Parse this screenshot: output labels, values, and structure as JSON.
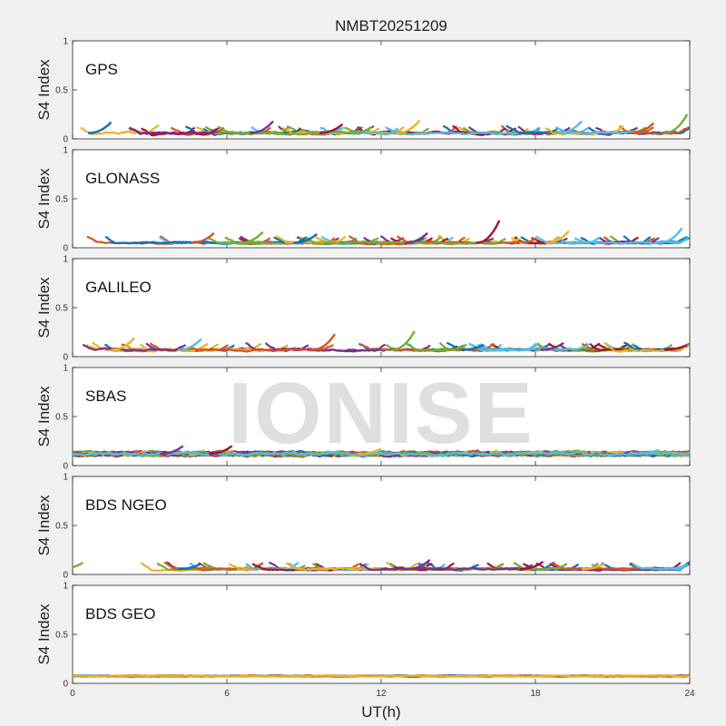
{
  "chart_data": {
    "type": "line",
    "title": "NMBT20251209",
    "xlabel": "UT(h)",
    "ylabel": "S4 Index",
    "xlim": [
      0,
      24
    ],
    "xticks": [
      0,
      6,
      12,
      18,
      24
    ],
    "ylim": [
      0,
      1
    ],
    "yticks": [
      0,
      0.5,
      1
    ],
    "ytick_labels": [
      "0",
      "0.5",
      "1"
    ],
    "grid": false,
    "watermark": "IONISE",
    "series_colors": [
      "#0072BD",
      "#D95319",
      "#EDB120",
      "#7E2F8E",
      "#77AC30",
      "#4DBEEE",
      "#A2142F"
    ],
    "panels": [
      {
        "label": "GPS",
        "baseline": 0.06,
        "noise": 0.035,
        "spikes": [
          [
            1.5,
            0.17
          ],
          [
            7.8,
            0.18
          ],
          [
            10.5,
            0.15
          ],
          [
            13.5,
            0.19
          ],
          [
            19.8,
            0.18
          ],
          [
            22.6,
            0.16
          ],
          [
            23.9,
            0.25
          ]
        ]
      },
      {
        "label": "GLONASS",
        "baseline": 0.05,
        "noise": 0.025,
        "spikes": [
          [
            5.5,
            0.15
          ],
          [
            7.4,
            0.16
          ],
          [
            9.5,
            0.14
          ],
          [
            13.8,
            0.15
          ],
          [
            16.6,
            0.28
          ],
          [
            19.3,
            0.17
          ],
          [
            23.7,
            0.2
          ]
        ]
      },
      {
        "label": "GALILEO",
        "baseline": 0.07,
        "noise": 0.03,
        "spikes": [
          [
            2.4,
            0.19
          ],
          [
            5.0,
            0.18
          ],
          [
            10.2,
            0.23
          ],
          [
            13.3,
            0.26
          ],
          [
            16.0,
            0.12
          ],
          [
            19.1,
            0.14
          ],
          [
            23.9,
            0.12
          ]
        ]
      },
      {
        "label": "SBAS",
        "baseline": 0.12,
        "noise": 0.045,
        "spikes": [
          [
            4.3,
            0.2
          ],
          [
            6.2,
            0.2
          ],
          [
            12.0,
            0.17
          ],
          [
            22.8,
            0.16
          ]
        ]
      },
      {
        "label": "BDS NGEO",
        "baseline": 0.055,
        "noise": 0.025,
        "spikes": [
          [
            0.4,
            0.12
          ],
          [
            5.0,
            0.11
          ],
          [
            13.9,
            0.15
          ],
          [
            18.3,
            0.13
          ],
          [
            20.7,
            0.11
          ],
          [
            23.9,
            0.1
          ]
        ]
      },
      {
        "label": "BDS GEO",
        "baseline": 0.075,
        "noise": 0.012,
        "spikes": []
      }
    ]
  }
}
